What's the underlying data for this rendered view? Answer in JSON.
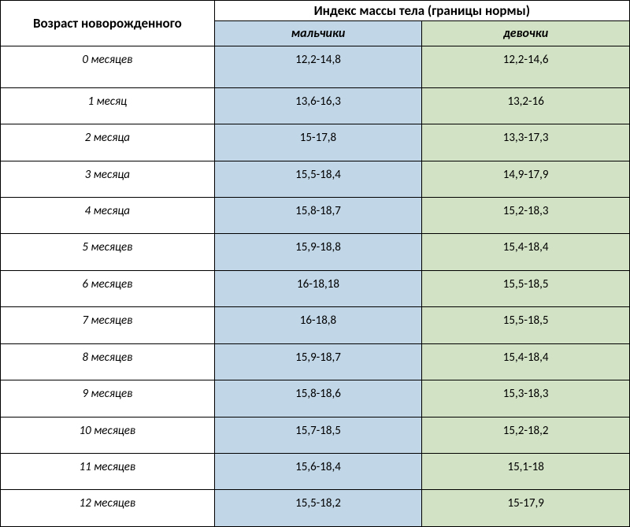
{
  "table": {
    "header_age": "Возраст новорожденного",
    "header_bmi": "Индекс массы тела (границы нормы)",
    "subheader_boys": "мальчики",
    "subheader_girls": "девочки",
    "columns": [
      "age",
      "boys",
      "girls"
    ],
    "column_widths_pct": [
      34,
      33,
      33
    ],
    "colors": {
      "border": "#000000",
      "background": "#ffffff",
      "boys_bg": "#c1d6e7",
      "girls_bg": "#d2e2c5",
      "text": "#000000"
    },
    "typography": {
      "header_fontsize": 17,
      "header_weight": "bold",
      "subheader_fontsize": 16,
      "subheader_weight": "bold",
      "subheader_style": "italic",
      "age_fontsize": 15,
      "age_style": "italic",
      "data_fontsize": 15,
      "font_family": "Calibri, Arial, sans-serif"
    },
    "rows": [
      {
        "age": "0 месяцев",
        "boys": "12,2-14,8",
        "girls": "12,2-14,6"
      },
      {
        "age": "1 месяц",
        "boys": "13,6-16,3",
        "girls": "13,2-16"
      },
      {
        "age": "2 месяца",
        "boys": "15-17,8",
        "girls": "13,3-17,3"
      },
      {
        "age": "3 месяца",
        "boys": "15,5-18,4",
        "girls": "14,9-17,9"
      },
      {
        "age": "4 месяца",
        "boys": "15,8-18,7",
        "girls": "15,2-18,3"
      },
      {
        "age": "5 месяцев",
        "boys": "15,9-18,8",
        "girls": "15,4-18,4"
      },
      {
        "age": "6 месяцев",
        "boys": "16-18,18",
        "girls": "15,5-18,5"
      },
      {
        "age": "7 месяцев",
        "boys": "16-18,8",
        "girls": "15,5-18,5"
      },
      {
        "age": "8 месяцев",
        "boys": "15,9-18,7",
        "girls": "15,4-18,4"
      },
      {
        "age": "9 месяцев",
        "boys": "15,8-18,6",
        "girls": "15,3-18,3"
      },
      {
        "age": "10 месяцев",
        "boys": "15,7-18,5",
        "girls": "15,2-18,2"
      },
      {
        "age": "11 месяцев",
        "boys": "15,6-18,4",
        "girls": "15,1-18"
      },
      {
        "age": "12 месяцев",
        "boys": "15,5-18,2",
        "girls": "15-17,9"
      }
    ]
  }
}
